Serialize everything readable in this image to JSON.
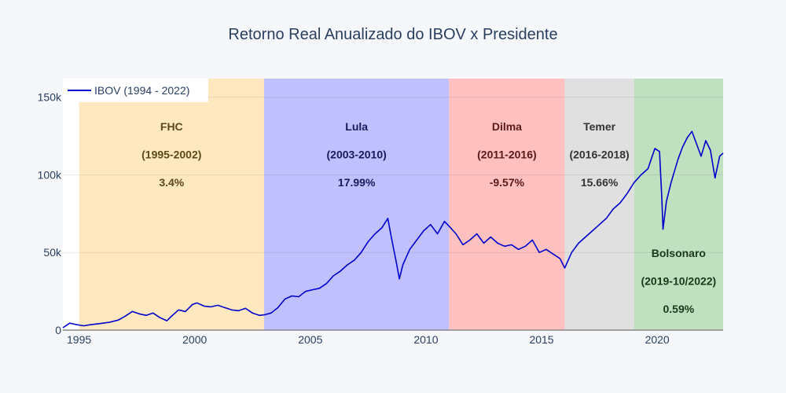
{
  "chart_data": {
    "type": "line",
    "title": "Retorno Real Anualizado do IBOV x Presidente",
    "xlabel": "",
    "ylabel": "",
    "xlim": [
      1994.3,
      2022.85
    ],
    "ylim": [
      0,
      162000
    ],
    "x_ticks": [
      {
        "v": 1995,
        "label": "1995"
      },
      {
        "v": 2000,
        "label": "2000"
      },
      {
        "v": 2005,
        "label": "2005"
      },
      {
        "v": 2010,
        "label": "2010"
      },
      {
        "v": 2015,
        "label": "2015"
      },
      {
        "v": 2020,
        "label": "2020"
      }
    ],
    "y_ticks": [
      {
        "v": 0,
        "label": "0"
      },
      {
        "v": 50000,
        "label": "50k"
      },
      {
        "v": 100000,
        "label": "100k"
      },
      {
        "v": 150000,
        "label": "150k"
      }
    ],
    "grid": true,
    "legend": {
      "position": "top-left",
      "label": "IBOV (1994 - 2022)"
    },
    "periods": [
      {
        "x0": 1995.0,
        "x1": 2003.0,
        "color": "#ffe7bf",
        "name": "FHC",
        "years": "(1995-2002)",
        "ret": "3.4%",
        "text_color": "#5a4a1a",
        "label_y": "top"
      },
      {
        "x0": 2003.0,
        "x1": 2011.0,
        "color": "#c0c0ff",
        "name": "Lula",
        "years": "(2003-2010)",
        "ret": "17.99%",
        "text_color": "#1a1a5a",
        "label_y": "top"
      },
      {
        "x0": 2011.0,
        "x1": 2016.0,
        "color": "#ffc0c0",
        "name": "Dilma",
        "years": "(2011-2016)",
        "ret": "-9.57%",
        "text_color": "#5a1a1a",
        "label_y": "top"
      },
      {
        "x0": 2016.0,
        "x1": 2019.0,
        "color": "#e0e0e0",
        "name": "Temer",
        "years": "(2016-2018)",
        "ret": "15.66%",
        "text_color": "#333333",
        "label_y": "top"
      },
      {
        "x0": 2019.0,
        "x1": 2022.85,
        "color": "#c0e0c0",
        "name": "Bolsonaro",
        "years": "(2019-10/2022)",
        "ret": "0.59%",
        "text_color": "#1a3a1a",
        "label_y": "bottom"
      }
    ],
    "series": [
      {
        "name": "IBOV (1994 - 2022)",
        "color": "#0000cc",
        "x": [
          1994.3,
          1994.6,
          1994.9,
          1995.2,
          1995.5,
          1995.9,
          1996.3,
          1996.7,
          1997.0,
          1997.3,
          1997.6,
          1997.9,
          1998.2,
          1998.5,
          1998.8,
          1999.0,
          1999.3,
          1999.6,
          1999.9,
          2000.1,
          2000.4,
          2000.7,
          2001.0,
          2001.3,
          2001.6,
          2001.9,
          2002.2,
          2002.5,
          2002.8,
          2003.0,
          2003.3,
          2003.6,
          2003.9,
          2004.2,
          2004.5,
          2004.8,
          2005.1,
          2005.4,
          2005.7,
          2006.0,
          2006.3,
          2006.6,
          2006.9,
          2007.2,
          2007.5,
          2007.8,
          2008.1,
          2008.35,
          2008.5,
          2008.7,
          2008.85,
          2009.0,
          2009.3,
          2009.6,
          2009.9,
          2010.2,
          2010.5,
          2010.8,
          2011.0,
          2011.3,
          2011.6,
          2011.9,
          2012.2,
          2012.5,
          2012.8,
          2013.1,
          2013.4,
          2013.7,
          2014.0,
          2014.3,
          2014.6,
          2014.9,
          2015.2,
          2015.5,
          2015.8,
          2016.0,
          2016.3,
          2016.6,
          2016.9,
          2017.2,
          2017.5,
          2017.8,
          2018.1,
          2018.4,
          2018.7,
          2019.0,
          2019.3,
          2019.6,
          2019.9,
          2020.1,
          2020.2,
          2020.25,
          2020.4,
          2020.6,
          2020.9,
          2021.1,
          2021.3,
          2021.5,
          2021.7,
          2021.9,
          2022.1,
          2022.3,
          2022.5,
          2022.7,
          2022.85
        ],
        "values": [
          1500,
          4500,
          3500,
          2800,
          3500,
          4200,
          5000,
          6500,
          9000,
          12000,
          10500,
          9500,
          11000,
          8000,
          6000,
          9000,
          13000,
          12000,
          16500,
          17500,
          15500,
          15000,
          16000,
          14500,
          13000,
          12500,
          14000,
          11000,
          9500,
          9800,
          11000,
          14500,
          20000,
          22000,
          21500,
          25000,
          26000,
          27000,
          30000,
          35000,
          38000,
          42000,
          45000,
          50000,
          57000,
          62000,
          66000,
          72000,
          60000,
          45000,
          33000,
          42000,
          52000,
          58000,
          64000,
          68000,
          62000,
          70000,
          67000,
          62000,
          55000,
          58000,
          62000,
          56000,
          60000,
          56000,
          54000,
          55000,
          52000,
          54000,
          58000,
          50000,
          52000,
          49000,
          46000,
          40000,
          50000,
          56000,
          60000,
          64000,
          68000,
          72000,
          78000,
          82000,
          88000,
          95000,
          100000,
          104000,
          117000,
          115000,
          85000,
          65000,
          83000,
          95000,
          110000,
          118000,
          124000,
          128000,
          120000,
          112000,
          122000,
          116000,
          98000,
          112000,
          114000
        ]
      }
    ]
  }
}
